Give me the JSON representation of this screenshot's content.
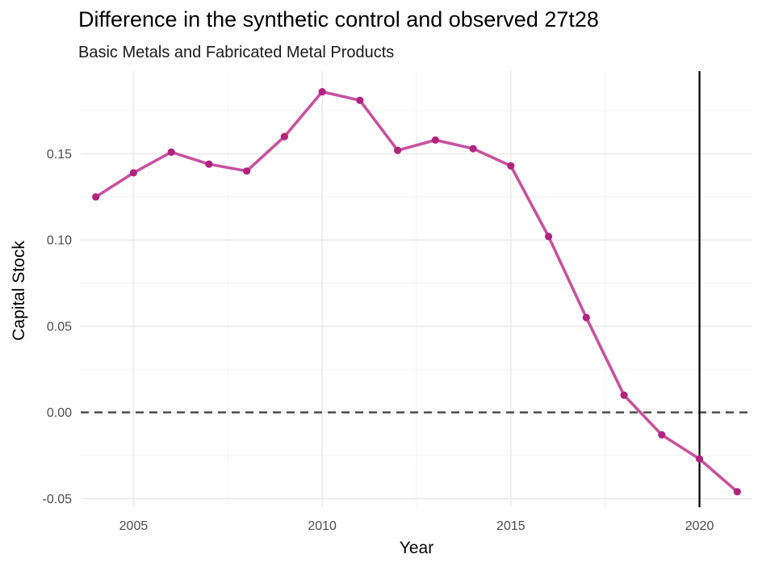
{
  "chart_data": {
    "type": "line",
    "title": "Difference in the synthetic control and observed 27t28",
    "subtitle": "Basic Metals and Fabricated Metal Products",
    "xlabel": "Year",
    "ylabel": "Capital Stock",
    "x": [
      2004,
      2005,
      2006,
      2007,
      2008,
      2009,
      2010,
      2011,
      2012,
      2013,
      2014,
      2015,
      2016,
      2017,
      2018,
      2019,
      2020,
      2021
    ],
    "series": [
      {
        "values": [
          0.125,
          0.139,
          0.151,
          0.144,
          0.14,
          0.16,
          0.186,
          0.181,
          0.152,
          0.158,
          0.153,
          0.143,
          0.102,
          0.055,
          0.01,
          -0.013,
          -0.027,
          -0.046
        ],
        "color": "#c9519f",
        "point_color": "#b0247e"
      }
    ],
    "xlim": [
      2003.6,
      2021.4
    ],
    "ylim": [
      -0.055,
      0.198
    ],
    "x_ticks": [
      2005,
      2010,
      2015,
      2020
    ],
    "x_tick_labels": [
      "2005",
      "2010",
      "2015",
      "2020"
    ],
    "y_ticks": [
      -0.05,
      0.0,
      0.05,
      0.1,
      0.15
    ],
    "y_tick_labels": [
      "-0.05",
      "0.00",
      "0.05",
      "0.10",
      "0.15"
    ],
    "reference_lines": [
      {
        "orientation": "horizontal",
        "value": 0,
        "style": "dashed",
        "color": "#444444"
      },
      {
        "orientation": "vertical",
        "value": 2020,
        "style": "solid",
        "color": "#000000"
      }
    ],
    "grid": true,
    "legend": "none"
  }
}
